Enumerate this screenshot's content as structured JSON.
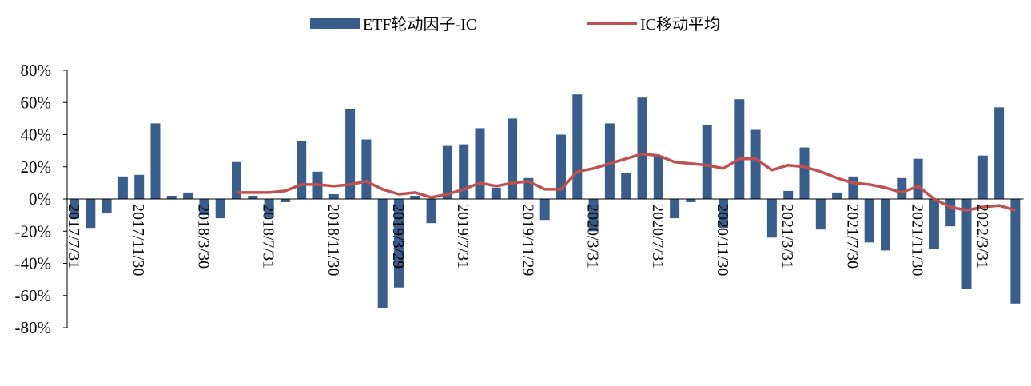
{
  "colors": {
    "bar": "#3A5E8C",
    "line": "#C0504D",
    "axis": "#000000"
  },
  "chart_data": {
    "type": "bar",
    "title": "",
    "xlabel": "",
    "ylabel": "",
    "ylim": [
      -80,
      80
    ],
    "y_ticks": [
      "80%",
      "60%",
      "40%",
      "20%",
      "0%",
      "-20%",
      "-40%",
      "-60%",
      "-80%"
    ],
    "grid": false,
    "legend_position": "top",
    "x_tick_labels": [
      {
        "i": 0,
        "label": "2017/7/31"
      },
      {
        "i": 4,
        "label": "2017/11/30"
      },
      {
        "i": 8,
        "label": "2018/3/30"
      },
      {
        "i": 12,
        "label": "2018/7/31"
      },
      {
        "i": 16,
        "label": "2018/11/30"
      },
      {
        "i": 20,
        "label": "2019/3/29"
      },
      {
        "i": 24,
        "label": "2019/7/31"
      },
      {
        "i": 28,
        "label": "2019/11/29"
      },
      {
        "i": 32,
        "label": "2020/3/31"
      },
      {
        "i": 36,
        "label": "2020/7/31"
      },
      {
        "i": 40,
        "label": "2020/11/30"
      },
      {
        "i": 44,
        "label": "2021/3/31"
      },
      {
        "i": 48,
        "label": "2021/7/30"
      },
      {
        "i": 52,
        "label": "2021/11/30"
      },
      {
        "i": 56,
        "label": "2022/3/31"
      }
    ],
    "series": [
      {
        "name": "ETF轮动因子-IC",
        "type": "bar",
        "values": [
          -12,
          -18,
          -9,
          14,
          15,
          47,
          2,
          4,
          -10,
          -12,
          23,
          2,
          -11,
          -2,
          36,
          17,
          3,
          56,
          37,
          -68,
          -55,
          2,
          -15,
          33,
          34,
          44,
          7,
          50,
          13,
          -13,
          40,
          65,
          -20,
          47,
          16,
          63,
          27,
          -12,
          -2,
          46,
          -18,
          62,
          43,
          -24,
          5,
          32,
          -19,
          4,
          14,
          -27,
          -32,
          13,
          25,
          -31,
          -17,
          -56,
          27,
          57,
          -65
        ]
      },
      {
        "name": "IC移动平均",
        "type": "line",
        "start_index": 10,
        "values": [
          4,
          4,
          4,
          5,
          9,
          9,
          8,
          9,
          11,
          6,
          3,
          4,
          1,
          3,
          6,
          10,
          8,
          10,
          11,
          6,
          6,
          17,
          19,
          22,
          25,
          28,
          27,
          23,
          22,
          21,
          19,
          25,
          25,
          18,
          21,
          20,
          17,
          13,
          10,
          9,
          7,
          4,
          8,
          0,
          -5,
          -7,
          -5,
          -4,
          -7
        ]
      }
    ]
  }
}
